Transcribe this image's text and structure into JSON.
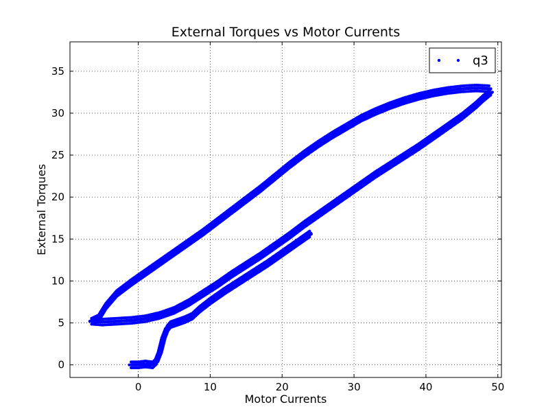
{
  "colors": {
    "series": "#0000ff",
    "axes": "#000000",
    "grid": "#000000",
    "background": "#ffffff"
  },
  "chart_data": {
    "type": "scatter",
    "title": "External Torques vs Motor Currents",
    "xlabel": "Motor Currents",
    "ylabel": "External Torques",
    "xlim": [
      -9.5,
      50.5
    ],
    "ylim": [
      -1.5,
      38.5
    ],
    "xticks": [
      0,
      10,
      20,
      30,
      40,
      50
    ],
    "yticks": [
      0,
      5,
      10,
      15,
      20,
      25,
      30,
      35
    ],
    "xtick_labels": [
      "0",
      "10",
      "20",
      "30",
      "40",
      "50"
    ],
    "ytick_labels": [
      "0",
      "5",
      "10",
      "15",
      "20",
      "25",
      "30",
      "35"
    ],
    "grid": true,
    "legend": {
      "position": "top-right",
      "entries": [
        "q3"
      ]
    },
    "series": [
      {
        "name": "q3",
        "marker": "point",
        "description_segments": [
          {
            "part": "initial",
            "points": [
              [
                -1.0,
                0.0
              ],
              [
                -0.5,
                0.0
              ],
              [
                0.0,
                0.0
              ],
              [
                0.5,
                0.05
              ],
              [
                1.0,
                0.1
              ],
              [
                1.5,
                0.05
              ],
              [
                2.0,
                0.0
              ],
              [
                2.5,
                0.4
              ],
              [
                3.0,
                1.5
              ],
              [
                3.5,
                3.2
              ],
              [
                4.0,
                4.3
              ],
              [
                4.5,
                4.8
              ],
              [
                5.5,
                5.1
              ],
              [
                6.5,
                5.4
              ],
              [
                7.5,
                5.8
              ],
              [
                8.5,
                6.6
              ],
              [
                10.0,
                7.6
              ],
              [
                12.0,
                8.8
              ],
              [
                14.0,
                9.9
              ],
              [
                16.0,
                11.0
              ],
              [
                18.0,
                12.1
              ],
              [
                20.0,
                13.3
              ],
              [
                22.0,
                14.5
              ],
              [
                24.0,
                15.7
              ]
            ]
          },
          {
            "part": "upper-branch",
            "points": [
              [
                -6.5,
                5.2
              ],
              [
                -5.5,
                5.6
              ],
              [
                -4.5,
                7.0
              ],
              [
                -3.0,
                8.5
              ],
              [
                -1.0,
                9.8
              ],
              [
                1.0,
                11.0
              ],
              [
                3.0,
                12.2
              ],
              [
                5.0,
                13.4
              ],
              [
                7.0,
                14.6
              ],
              [
                9.0,
                15.8
              ],
              [
                11.0,
                17.1
              ],
              [
                13.0,
                18.4
              ],
              [
                15.0,
                19.7
              ],
              [
                17.0,
                21.0
              ],
              [
                19.0,
                22.4
              ],
              [
                21.0,
                23.8
              ],
              [
                23.0,
                25.1
              ],
              [
                25.0,
                26.3
              ],
              [
                27.0,
                27.4
              ],
              [
                29.0,
                28.4
              ],
              [
                31.0,
                29.4
              ],
              [
                33.0,
                30.2
              ],
              [
                35.0,
                30.9
              ],
              [
                37.0,
                31.5
              ],
              [
                39.0,
                32.0
              ],
              [
                41.0,
                32.4
              ],
              [
                43.0,
                32.7
              ],
              [
                45.0,
                32.9
              ],
              [
                47.0,
                33.0
              ],
              [
                49.0,
                32.9
              ]
            ]
          },
          {
            "part": "lower-branch",
            "points": [
              [
                49.0,
                32.5
              ],
              [
                48.0,
                31.8
              ],
              [
                47.0,
                31.0
              ],
              [
                45.0,
                29.6
              ],
              [
                43.0,
                28.4
              ],
              [
                41.0,
                27.2
              ],
              [
                39.0,
                26.0
              ],
              [
                37.0,
                24.9
              ],
              [
                35.0,
                23.8
              ],
              [
                33.0,
                22.7
              ],
              [
                31.0,
                21.5
              ],
              [
                29.0,
                20.3
              ],
              [
                27.0,
                19.1
              ],
              [
                25.0,
                17.9
              ],
              [
                23.0,
                16.7
              ],
              [
                21.0,
                15.4
              ],
              [
                19.0,
                14.2
              ],
              [
                17.0,
                13.0
              ],
              [
                15.0,
                11.9
              ],
              [
                13.0,
                10.8
              ],
              [
                11.0,
                9.6
              ],
              [
                9.0,
                8.5
              ],
              [
                7.0,
                7.4
              ],
              [
                5.0,
                6.5
              ],
              [
                3.0,
                5.9
              ],
              [
                1.0,
                5.5
              ],
              [
                -1.0,
                5.3
              ],
              [
                -3.0,
                5.2
              ],
              [
                -5.0,
                5.1
              ],
              [
                -6.5,
                5.2
              ]
            ]
          }
        ]
      }
    ]
  }
}
